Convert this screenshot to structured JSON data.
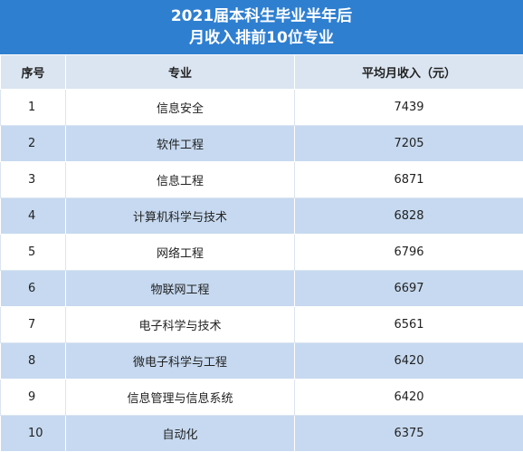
{
  "title": [
    "2021届本科生毕业半年后",
    "月收入排前10位专业"
  ],
  "table": {
    "header": [
      "序号",
      "专业",
      "平均月收入（元）"
    ],
    "rows": [
      [
        1,
        "信息安全",
        7439
      ],
      [
        2,
        "软件工程",
        7205
      ],
      [
        3,
        "信息工程",
        6871
      ],
      [
        4,
        "计算机科学与技术",
        6828
      ],
      [
        5,
        "网络工程",
        6796
      ],
      [
        6,
        "物联网工程",
        6697
      ],
      [
        7,
        "电子科学与技术",
        6561
      ],
      [
        8,
        "微电子科学与工程",
        6420
      ],
      [
        9,
        "信息管理与信息系统",
        6420
      ],
      [
        10,
        "自动化",
        6375
      ]
    ]
  }
}
